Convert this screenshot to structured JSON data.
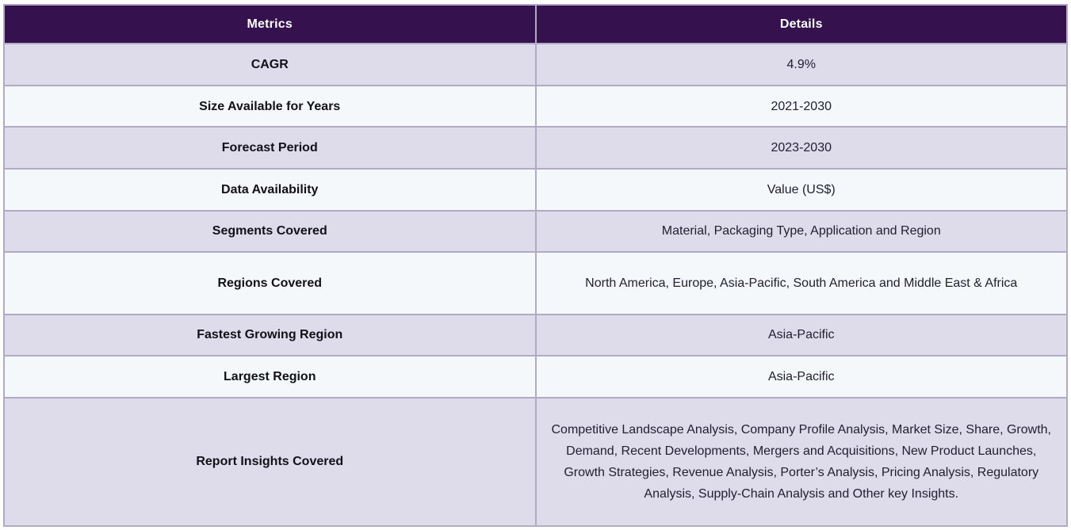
{
  "colors": {
    "header_bg": "#35124e",
    "header_text": "#ffffff",
    "row_lavender": "#dedbeb",
    "row_white": "#f4f8fb",
    "border": "#b0aac6",
    "metric_text": "#111118",
    "detail_text": "#212130"
  },
  "table": {
    "headers": {
      "metrics": "Metrics",
      "details": "Details"
    },
    "rows": [
      {
        "metric": "CAGR",
        "detail": "4.9%"
      },
      {
        "metric": "Size Available for Years",
        "detail": "2021-2030"
      },
      {
        "metric": "Forecast Period",
        "detail": "2023-2030"
      },
      {
        "metric": "Data Availability",
        "detail": "Value (US$)"
      },
      {
        "metric": "Segments Covered",
        "detail": "Material, Packaging Type, Application and Region"
      },
      {
        "metric": "Regions Covered",
        "detail": "North America, Europe, Asia-Pacific, South America and Middle East & Africa"
      },
      {
        "metric": "Fastest Growing Region",
        "detail": "Asia-Pacific"
      },
      {
        "metric": "Largest Region",
        "detail": "Asia-Pacific"
      },
      {
        "metric": "Report Insights Covered",
        "detail": "Competitive Landscape Analysis, Company Profile Analysis, Market Size, Share, Growth, Demand, Recent Developments, Mergers and Acquisitions, New Product Launches, Growth Strategies, Revenue Analysis, Porter’s Analysis, Pricing Analysis, Regulatory Analysis, Supply-Chain Analysis and Other key Insights."
      }
    ]
  }
}
